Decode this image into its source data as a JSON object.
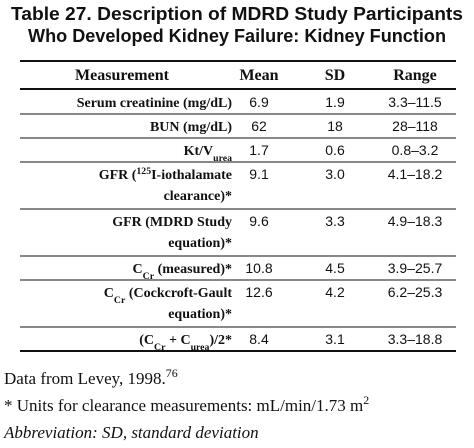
{
  "title": [
    "Table 27. Description of MDRD Study Participants",
    "Who Developed Kidney Failure: Kidney Function"
  ],
  "table": {
    "columns": [
      "Measurement",
      "Mean",
      "SD",
      "Range"
    ],
    "rows": [
      {
        "measurement": [
          [
            {
              "text": "Serum creatinine (mg/dL)"
            }
          ]
        ],
        "mean": "6.9",
        "sd": "1.9",
        "range": "3.3–11.5"
      },
      {
        "measurement": [
          [
            {
              "text": "BUN (mg/dL)"
            }
          ]
        ],
        "mean": "62",
        "sd": "18",
        "range": "28–118"
      },
      {
        "measurement": [
          [
            {
              "text": "Kt/V"
            },
            {
              "text": "urea",
              "style": "sub"
            }
          ]
        ],
        "mean": "1.7",
        "sd": "0.6",
        "range": "0.8–3.2"
      },
      {
        "measurement": [
          [
            {
              "text": "GFR ("
            },
            {
              "text": "125",
              "style": "sup"
            },
            {
              "text": "I-iothalamate"
            }
          ],
          [
            {
              "text": "clearance)*"
            }
          ]
        ],
        "mean": "9.1",
        "sd": "3.0",
        "range": "4.1–18.2"
      },
      {
        "measurement": [
          [
            {
              "text": "GFR (MDRD Study"
            }
          ],
          [
            {
              "text": "equation)*"
            }
          ]
        ],
        "mean": "9.6",
        "sd": "3.3",
        "range": "4.9–18.3"
      },
      {
        "measurement": [
          [
            {
              "text": "C"
            },
            {
              "text": "Cr",
              "style": "sub"
            },
            {
              "text": " (measured)*"
            }
          ]
        ],
        "mean": "10.8",
        "sd": "4.5",
        "range": "3.9–25.7"
      },
      {
        "measurement": [
          [
            {
              "text": "C"
            },
            {
              "text": "Cr",
              "style": "sub"
            },
            {
              "text": " (Cockcroft-Gault"
            }
          ],
          [
            {
              "text": "equation)*"
            }
          ]
        ],
        "mean": "12.6",
        "sd": "4.2",
        "range": "6.2–25.3"
      },
      {
        "measurement": [
          [
            {
              "text": "(C"
            },
            {
              "text": "Cr",
              "style": "sub"
            },
            {
              "text": " + C"
            },
            {
              "text": "urea",
              "style": "sub"
            },
            {
              "text": ")/2*"
            }
          ]
        ],
        "mean": "8.4",
        "sd": "3.1",
        "range": "3.3–18.8"
      }
    ]
  },
  "footnotes": [
    [
      {
        "text": "Data from Levey, 1998."
      },
      {
        "text": "76",
        "style": "sup"
      }
    ],
    [
      {
        "text": "* Units for clearance measurements: mL/min/1.73 m"
      },
      {
        "text": "2",
        "style": "sup"
      }
    ],
    [
      {
        "text": "Abbreviation: SD, standard deviation",
        "style": "italic"
      }
    ]
  ]
}
